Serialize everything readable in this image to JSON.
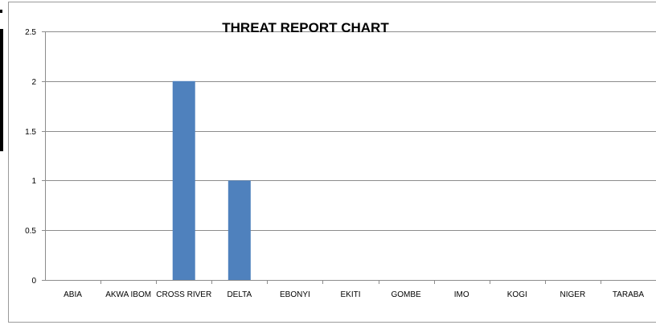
{
  "chart_data": {
    "type": "bar",
    "title": "THREAT REPORT  CHART",
    "xlabel": "",
    "ylabel": "",
    "categories": [
      "ABIA",
      "AKWA IBOM",
      "CROSS RIVER",
      "DELTA",
      "EBONYI",
      "EKITI",
      "GOMBE",
      "IMO",
      "KOGI",
      "NIGER",
      "TARABA"
    ],
    "values": [
      0,
      0,
      2,
      1,
      0,
      0,
      0,
      0,
      0,
      0,
      0
    ],
    "ylim": [
      0,
      2.5
    ],
    "yticks": [
      "0",
      "0.5",
      "1",
      "1.5",
      "2",
      "2.5"
    ],
    "grid": true,
    "legend": "none",
    "bar_color": "#4f81bd",
    "grid_color": "#8c8c8c"
  }
}
